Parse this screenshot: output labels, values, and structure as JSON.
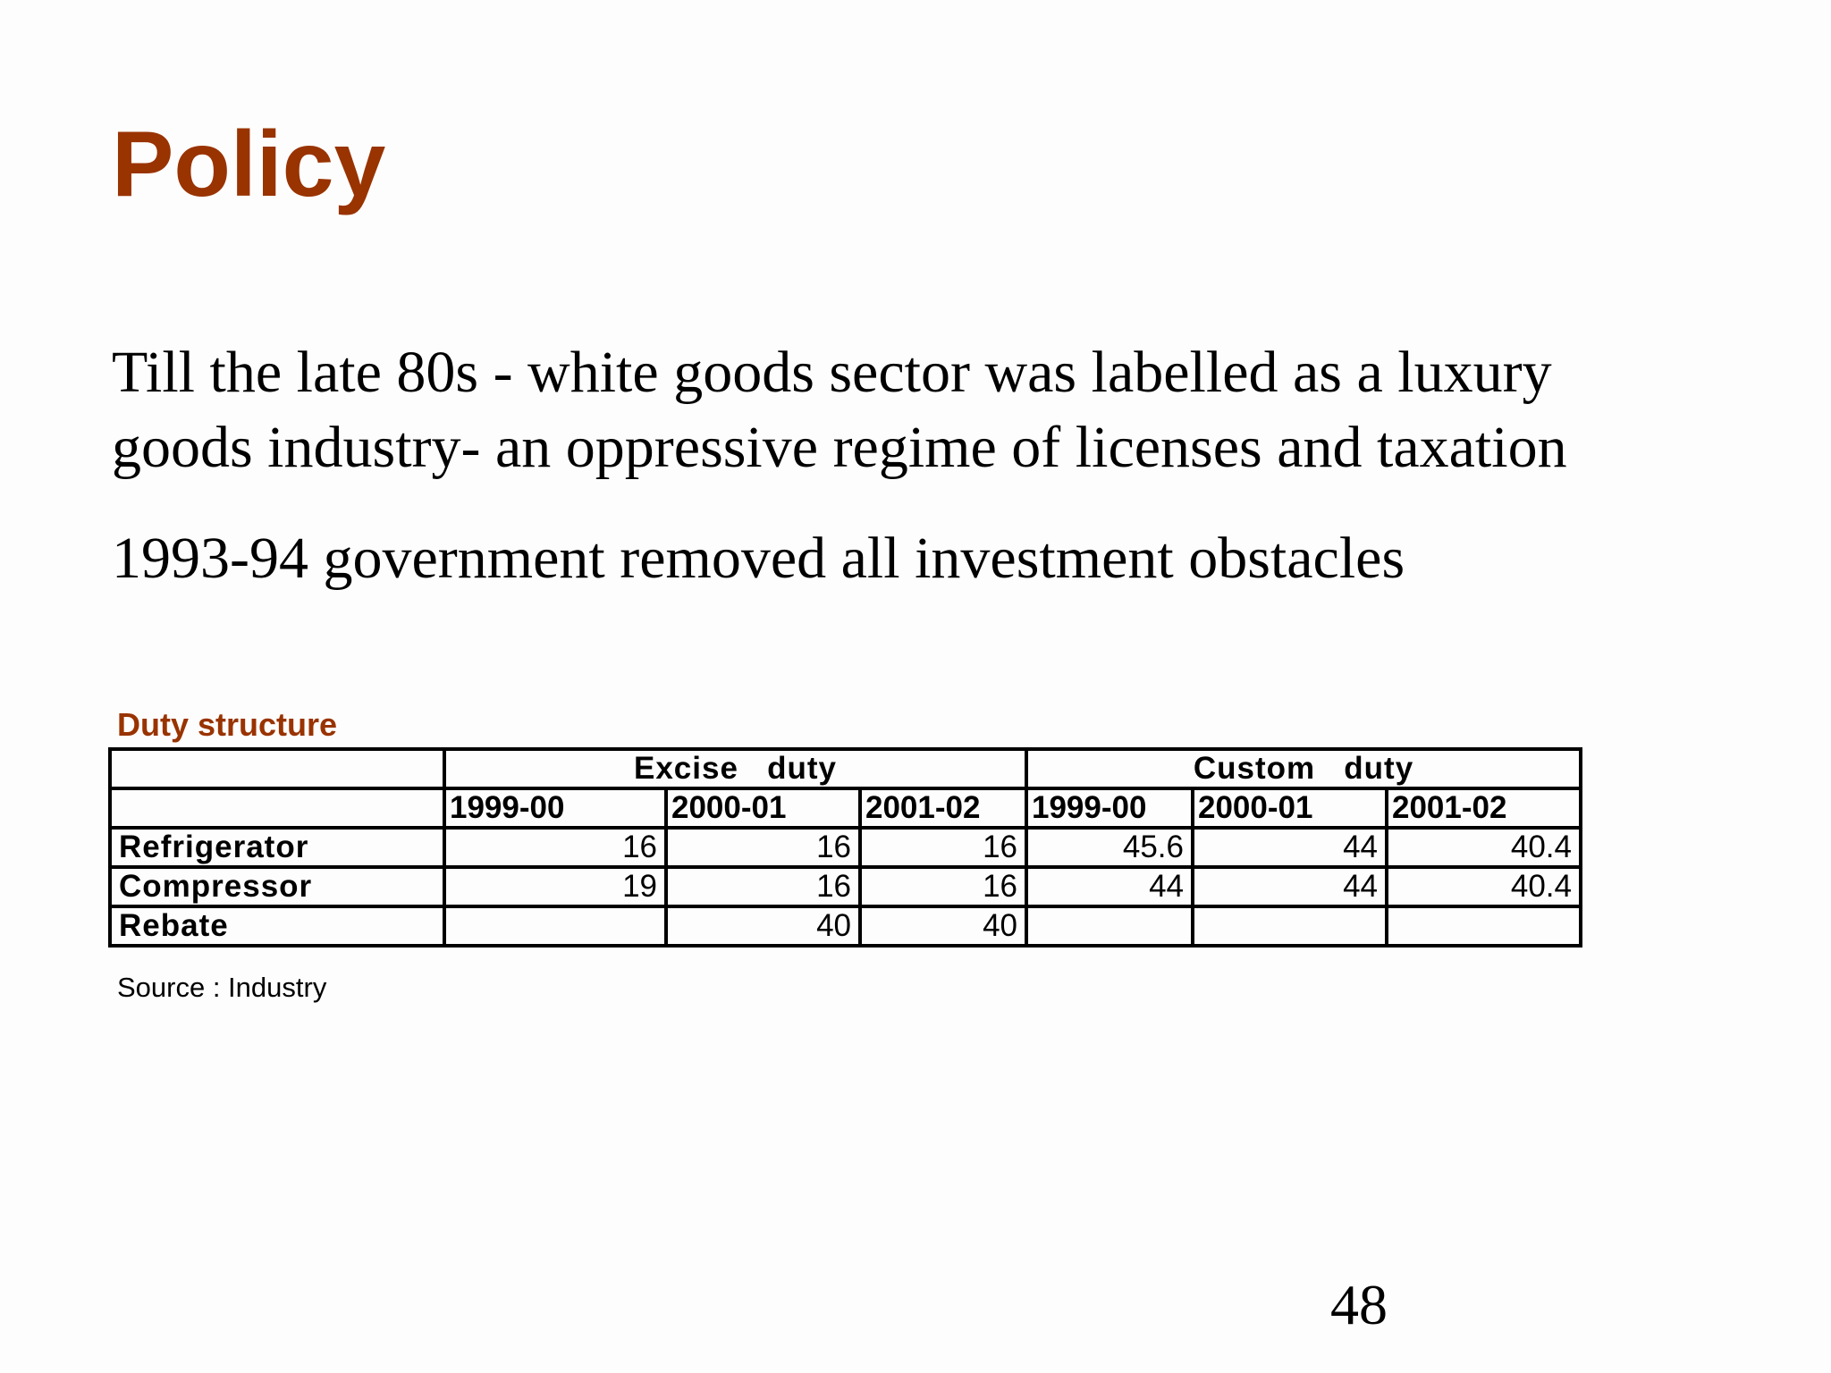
{
  "slide": {
    "title": "Policy",
    "paragraphs": [
      "Till the late 80s -  white goods sector was labelled as a luxury goods industry- an oppressive regime of licenses and taxation",
      "1993-94 government removed all investment obstacles"
    ],
    "para1_line1": "Till the late 80s -  white goods sector was labelled as a luxury",
    "para1_line2": "goods industry- an oppressive regime of licenses and taxation",
    "page_number": "48",
    "title_color": "#993300"
  },
  "table": {
    "caption": "Duty structure",
    "source": "Source : Industry",
    "groups": [
      "Excise   duty",
      "Custom   duty"
    ],
    "years": [
      "1999-00",
      "2000-01",
      "2001-02",
      "1999-00",
      "2000-01",
      "2001-02"
    ],
    "rows": [
      {
        "label": "Refrigerator",
        "values": [
          "16",
          "16",
          "16",
          "45.6",
          "44",
          "40.4"
        ]
      },
      {
        "label": "Compressor",
        "values": [
          "19",
          "16",
          "16",
          "44",
          "44",
          "40.4"
        ]
      },
      {
        "label": "Rebate",
        "values": [
          "",
          "40",
          "40",
          "",
          "",
          ""
        ]
      }
    ]
  }
}
